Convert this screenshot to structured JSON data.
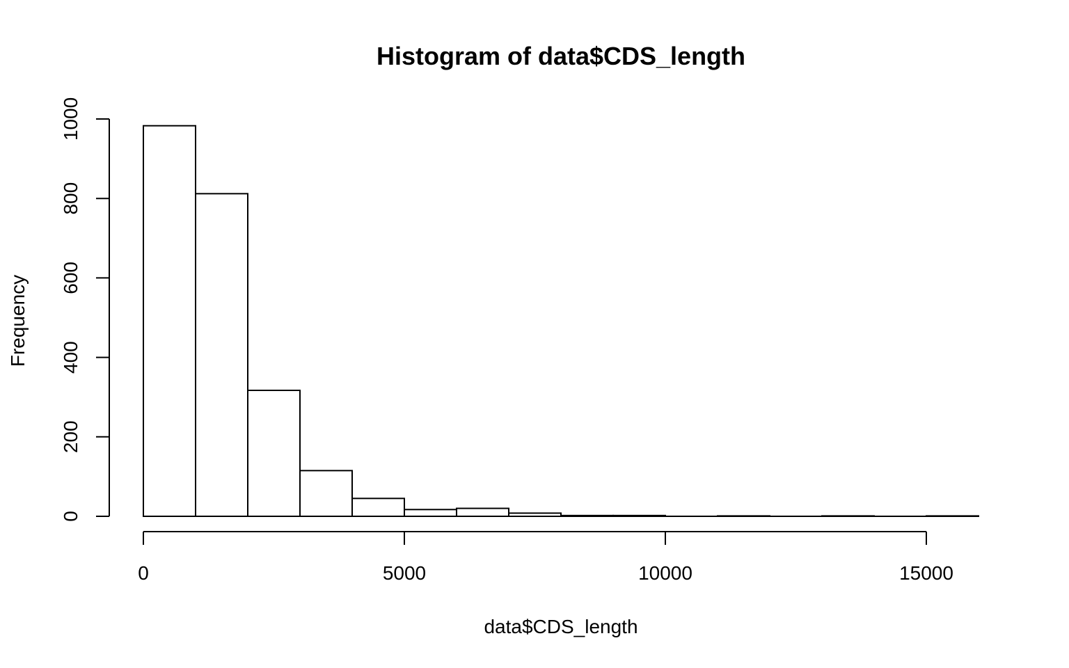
{
  "chart_data": {
    "type": "bar",
    "title": "Histogram of data$CDS_length",
    "xlabel": "data$CDS_length",
    "ylabel": "Frequency",
    "bin_width": 1000,
    "bins": [
      {
        "start": 0,
        "end": 1000,
        "count": 983
      },
      {
        "start": 1000,
        "end": 2000,
        "count": 812
      },
      {
        "start": 2000,
        "end": 3000,
        "count": 317
      },
      {
        "start": 3000,
        "end": 4000,
        "count": 115
      },
      {
        "start": 4000,
        "end": 5000,
        "count": 45
      },
      {
        "start": 5000,
        "end": 6000,
        "count": 17
      },
      {
        "start": 6000,
        "end": 7000,
        "count": 20
      },
      {
        "start": 7000,
        "end": 8000,
        "count": 8
      },
      {
        "start": 8000,
        "end": 9000,
        "count": 2
      },
      {
        "start": 9000,
        "end": 10000,
        "count": 2
      },
      {
        "start": 10000,
        "end": 11000,
        "count": 0
      },
      {
        "start": 11000,
        "end": 12000,
        "count": 1
      },
      {
        "start": 12000,
        "end": 13000,
        "count": 0
      },
      {
        "start": 13000,
        "end": 14000,
        "count": 1
      },
      {
        "start": 14000,
        "end": 15000,
        "count": 0
      },
      {
        "start": 15000,
        "end": 16000,
        "count": 1
      }
    ],
    "xlim": [
      0,
      16000
    ],
    "ylim": [
      0,
      1000
    ],
    "x_ticks": [
      0,
      5000,
      10000,
      15000
    ],
    "y_ticks": [
      0,
      200,
      400,
      600,
      800,
      1000
    ],
    "grid": false,
    "legend": "none"
  }
}
